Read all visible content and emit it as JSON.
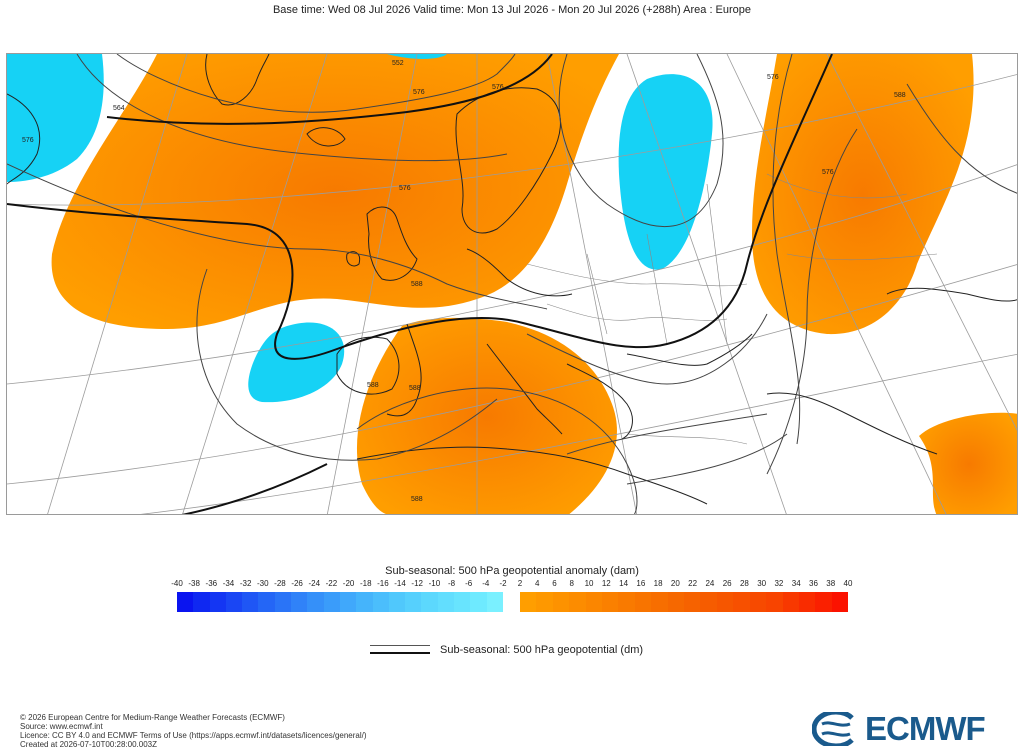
{
  "header": {
    "title": "Base time: Wed 08 Jul 2026 Valid time: Mon 13 Jul 2026 - Mon 20 Jul 2026 (+288h) Area : Europe"
  },
  "map": {
    "region": "Europe",
    "contour_labels": [
      "552",
      "564",
      "576",
      "576",
      "576",
      "588",
      "588",
      "588",
      "588",
      "576",
      "576",
      "576",
      "588"
    ]
  },
  "legend": {
    "anomaly_title": "Sub-seasonal: 500 hPa geopotential anomaly (dam)",
    "negative_ticks": [
      "-40",
      "-38",
      "-36",
      "-34",
      "-32",
      "-30",
      "-28",
      "-26",
      "-24",
      "-22",
      "-20",
      "-18",
      "-16",
      "-14",
      "-12",
      "-10",
      "-8",
      "-6",
      "-4",
      "-2"
    ],
    "positive_ticks": [
      "2",
      "4",
      "6",
      "8",
      "10",
      "12",
      "14",
      "16",
      "18",
      "20",
      "22",
      "24",
      "26",
      "28",
      "30",
      "32",
      "34",
      "36",
      "38",
      "40"
    ],
    "negative_colors": [
      "#0a14f0",
      "#0f28f2",
      "#1436f3",
      "#1a46f4",
      "#1f56f5",
      "#2466f6",
      "#2a74f7",
      "#3082f8",
      "#3590f9",
      "#3a9cfa",
      "#40a8fb",
      "#45b4fb",
      "#4bbefc",
      "#50c8fc",
      "#56d0fd",
      "#5cd8fd",
      "#62defe",
      "#68e4fe",
      "#6eeaff",
      "#7af0ff"
    ],
    "positive_colors": [
      "#ff9e00",
      "#fe9800",
      "#fd9200",
      "#fc8c00",
      "#fb8600",
      "#fa8000",
      "#f97a00",
      "#f87400",
      "#f76e00",
      "#f66800",
      "#f66200",
      "#f65c00",
      "#f65600",
      "#f75000",
      "#f74a00",
      "#f84400",
      "#f83800",
      "#f92c00",
      "#fa2000",
      "#fb1200"
    ],
    "geopotential_label": "Sub-seasonal: 500 hPa geopotential (dm)"
  },
  "footer": {
    "line1": "© 2026 European Centre for Medium-Range Weather Forecasts (ECMWF)",
    "line2": "Source: www.ecmwf.int",
    "line3": "Licence: CC BY 4.0 and ECMWF Terms of Use (https://apps.ecmwf.int/datasets/licences/general/)",
    "line4": "Created at 2026-07-10T00:28:00.003Z"
  },
  "logo": {
    "text": "ECMWF",
    "color": "#1a5a8c"
  }
}
